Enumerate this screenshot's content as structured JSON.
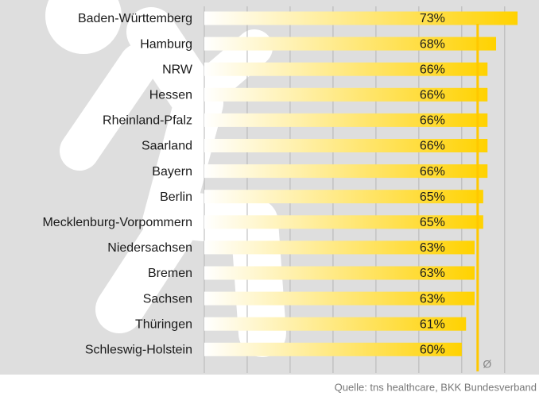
{
  "chart_data": {
    "type": "bar",
    "orientation": "horizontal",
    "categories": [
      "Baden-Württemberg",
      "Hamburg",
      "NRW",
      "Hessen",
      "Rheinland-Pfalz",
      "Saarland",
      "Bayern",
      "Berlin",
      "Mecklenburg-Vorpommern",
      "Niedersachsen",
      "Bremen",
      "Sachsen",
      "Thüringen",
      "Schleswig-Holstein"
    ],
    "values": [
      73,
      68,
      66,
      66,
      66,
      66,
      66,
      65,
      65,
      63,
      63,
      63,
      61,
      60
    ],
    "value_labels": [
      "73%",
      "68%",
      "66%",
      "66%",
      "66%",
      "66%",
      "66%",
      "65%",
      "65%",
      "63%",
      "63%",
      "63%",
      "61%",
      "60%"
    ],
    "color": "#ffd200",
    "xlim": [
      0,
      78
    ],
    "xticks": [
      0,
      10,
      20,
      30,
      40,
      50,
      60,
      70
    ],
    "grid": true,
    "average": {
      "value": 63.7,
      "label": "Ø"
    },
    "source": "Quelle: tns healthcare, BKK Bundesverband"
  }
}
